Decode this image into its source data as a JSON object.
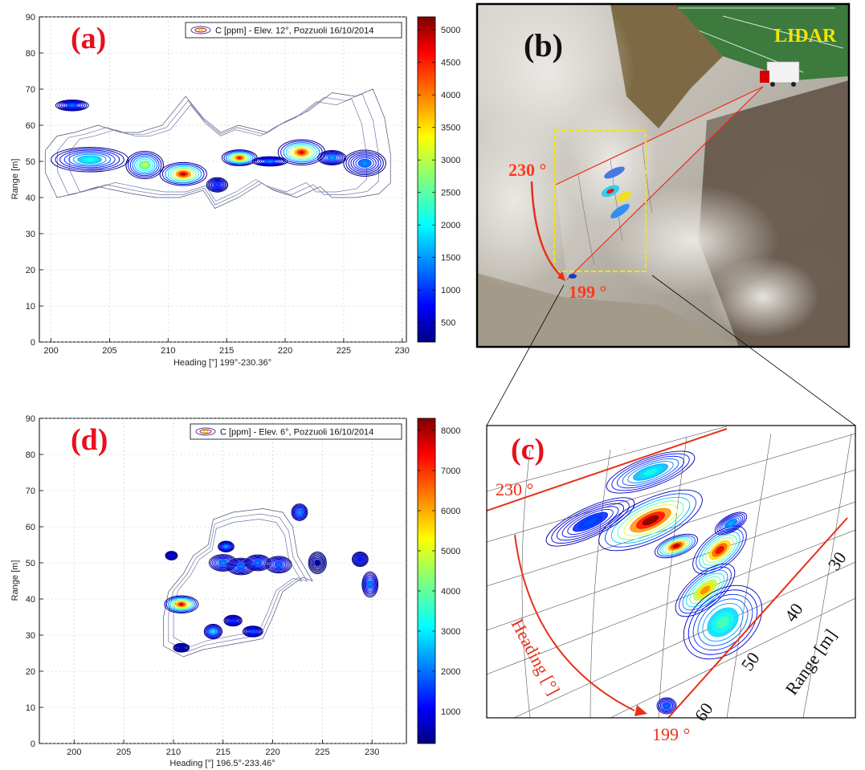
{
  "chart_data": [
    {
      "panel": "(a)",
      "type": "contour",
      "legend": "C [ppm] - Elev. 12°, Pozzuoli 16/10/2014",
      "xlabel": "Heading [°] 199°-230.36°",
      "ylabel": "Range [m]",
      "xlim": [
        199,
        230.36
      ],
      "ylim": [
        0,
        90
      ],
      "xticks": [
        200,
        205,
        210,
        215,
        220,
        225,
        230
      ],
      "yticks": [
        0,
        10,
        20,
        30,
        40,
        50,
        60,
        70,
        80,
        90
      ],
      "grid": true,
      "colorbar": {
        "min": 200,
        "max": 5200,
        "ticks": [
          500,
          1000,
          1500,
          2000,
          2500,
          3000,
          3500,
          4000,
          4500,
          5000
        ]
      },
      "outline": [
        [
          199.5,
          47
        ],
        [
          200.5,
          40
        ],
        [
          202,
          41
        ],
        [
          204,
          43
        ],
        [
          205.5,
          42
        ],
        [
          207,
          41
        ],
        [
          209,
          40
        ],
        [
          211,
          40
        ],
        [
          213,
          42
        ],
        [
          214,
          37
        ],
        [
          216,
          40
        ],
        [
          218,
          44
        ],
        [
          219,
          42
        ],
        [
          221,
          40
        ],
        [
          223,
          43
        ],
        [
          224,
          40
        ],
        [
          226,
          40
        ],
        [
          228,
          41
        ],
        [
          229,
          44
        ],
        [
          229,
          52
        ],
        [
          228.5,
          62
        ],
        [
          227.5,
          70
        ],
        [
          226,
          68
        ],
        [
          224,
          69
        ],
        [
          222,
          64
        ],
        [
          220,
          61
        ],
        [
          218.5,
          58
        ],
        [
          216,
          60
        ],
        [
          214.5,
          58
        ],
        [
          213,
          62
        ],
        [
          211.5,
          68
        ],
        [
          209.5,
          60
        ],
        [
          207.5,
          58
        ],
        [
          206,
          58
        ],
        [
          204,
          60
        ],
        [
          202,
          58
        ],
        [
          200.5,
          57
        ],
        [
          199.5,
          53
        ]
      ],
      "features": [
        {
          "x": 201.8,
          "y": 65.5,
          "rx": 1.4,
          "ry": 1.5,
          "peak": 1400
        },
        {
          "x": 203.3,
          "y": 50.5,
          "rx": 3.3,
          "ry": 3.4,
          "peak": 2300
        },
        {
          "x": 208,
          "y": 49,
          "rx": 1.6,
          "ry": 3.8,
          "peak": 3200
        },
        {
          "x": 211.3,
          "y": 46.5,
          "rx": 2.0,
          "ry": 3.2,
          "peak": 5000
        },
        {
          "x": 214.2,
          "y": 43.5,
          "rx": 0.9,
          "ry": 2.0,
          "peak": 1200
        },
        {
          "x": 216.1,
          "y": 51,
          "rx": 1.5,
          "ry": 2.2,
          "peak": 4700
        },
        {
          "x": 218.7,
          "y": 50,
          "rx": 1.5,
          "ry": 1.3,
          "peak": 1500
        },
        {
          "x": 221.4,
          "y": 52.5,
          "rx": 2.0,
          "ry": 3.5,
          "peak": 4800
        },
        {
          "x": 224,
          "y": 51,
          "rx": 1.2,
          "ry": 2.0,
          "peak": 1700
        },
        {
          "x": 226.8,
          "y": 49.5,
          "rx": 1.8,
          "ry": 3.6,
          "peak": 1600
        }
      ]
    },
    {
      "panel": "(d)",
      "type": "contour",
      "legend": "C [ppm] - Elev. 6°, Pozzuoli 16/10/2014",
      "xlabel": "Heading [°] 196.5°-233.46°",
      "ylabel": "Range [m]",
      "xlim": [
        196.5,
        233.46
      ],
      "ylim": [
        0,
        90
      ],
      "xticks": [
        200,
        205,
        210,
        215,
        220,
        225,
        230
      ],
      "yticks": [
        0,
        10,
        20,
        30,
        40,
        50,
        60,
        70,
        80,
        90
      ],
      "grid": true,
      "colorbar": {
        "min": 200,
        "max": 8300,
        "ticks": [
          1000,
          2000,
          3000,
          4000,
          5000,
          6000,
          7000,
          8000
        ]
      },
      "outline": [
        [
          209,
          27
        ],
        [
          211,
          24
        ],
        [
          213,
          26
        ],
        [
          215,
          27
        ],
        [
          217,
          28
        ],
        [
          219,
          29
        ],
        [
          220,
          35
        ],
        [
          221,
          42
        ],
        [
          223,
          46
        ],
        [
          224,
          45
        ],
        [
          222.5,
          52
        ],
        [
          222,
          60
        ],
        [
          221,
          64
        ],
        [
          219,
          65
        ],
        [
          216,
          64
        ],
        [
          214,
          62
        ],
        [
          213.5,
          55
        ],
        [
          212,
          52
        ],
        [
          211,
          47
        ],
        [
          209.5,
          42
        ],
        [
          209,
          35
        ]
      ],
      "features": [
        {
          "x": 209.8,
          "y": 52,
          "rx": 0.6,
          "ry": 1.2,
          "peak": 1200
        },
        {
          "x": 210.8,
          "y": 38.5,
          "rx": 1.7,
          "ry": 2.4,
          "peak": 7800
        },
        {
          "x": 210.8,
          "y": 26.5,
          "rx": 0.8,
          "ry": 1.2,
          "peak": 800
        },
        {
          "x": 214,
          "y": 31,
          "rx": 0.9,
          "ry": 2.0,
          "peak": 3200
        },
        {
          "x": 215.3,
          "y": 54.5,
          "rx": 0.8,
          "ry": 1.5,
          "peak": 2600
        },
        {
          "x": 215,
          "y": 50,
          "rx": 1.4,
          "ry": 2.3,
          "peak": 2400
        },
        {
          "x": 216.8,
          "y": 49,
          "rx": 1.4,
          "ry": 2.3,
          "peak": 2300
        },
        {
          "x": 218.5,
          "y": 50,
          "rx": 1.3,
          "ry": 2.2,
          "peak": 2300
        },
        {
          "x": 220.6,
          "y": 49.5,
          "rx": 1.3,
          "ry": 2.3,
          "peak": 2200
        },
        {
          "x": 222.7,
          "y": 64,
          "rx": 0.8,
          "ry": 2.3,
          "peak": 2500
        },
        {
          "x": 218,
          "y": 31,
          "rx": 1.0,
          "ry": 1.5,
          "peak": 2000
        },
        {
          "x": 216,
          "y": 34,
          "rx": 0.9,
          "ry": 1.5,
          "peak": 1700
        },
        {
          "x": 224.5,
          "y": 50,
          "rx": 0.9,
          "ry": 3.0,
          "peak": 500
        },
        {
          "x": 228.8,
          "y": 51,
          "rx": 0.8,
          "ry": 2.0,
          "peak": 1500
        },
        {
          "x": 229.8,
          "y": 44,
          "rx": 0.8,
          "ry": 3.5,
          "peak": 2400
        }
      ]
    }
  ],
  "photo_panel": {
    "label": "(b)",
    "lidar_label": "LIDAR",
    "angle_start": "230 °",
    "angle_end": "199 °"
  },
  "zoom_panel": {
    "label": "(c)",
    "angle_start": "230 °",
    "angle_end": "199 °",
    "heading_label": "Heading [°]",
    "range_label": "Range [m]",
    "range_ticks": [
      "30",
      "40",
      "50",
      "60"
    ]
  },
  "colors": {
    "jet_low": "#00007f",
    "jet_high": "#7f0000",
    "panel_letter": "#e8101a",
    "scan_line": "#e83018",
    "highlight_box": "#f4e400"
  }
}
